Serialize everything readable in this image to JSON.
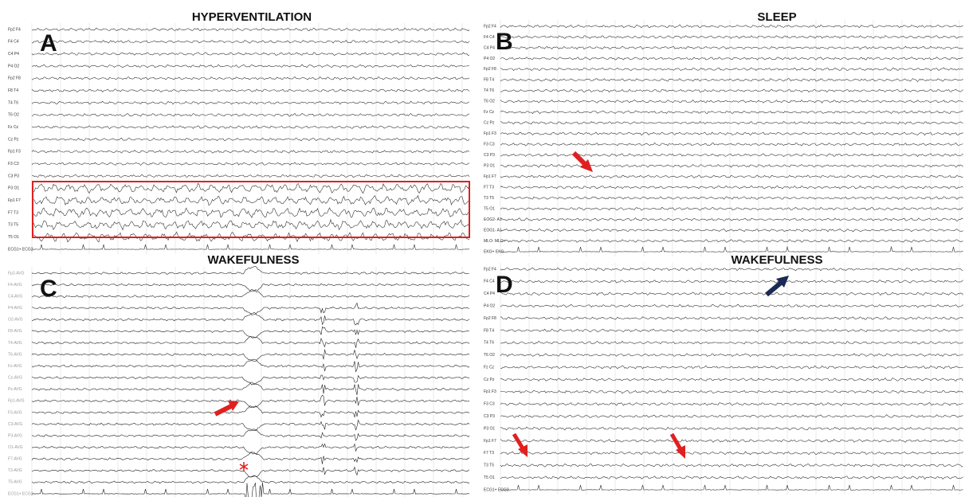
{
  "panels": [
    {
      "letter": "A",
      "title": "HYPERVENTILATION",
      "channels": [
        "Fp2 F4",
        "F4 C4",
        "C4 P4",
        "P4 O2",
        "Fp2 F8",
        "F8 T4",
        "T4 T6",
        "T6 O2",
        "Fz Cz",
        "Cz Pz",
        "Fp1 F3",
        "F3 C3",
        "C3 P3",
        "P3 O1",
        "Fp1 F7",
        "F7 T3",
        "T3 T5",
        "T5 O1",
        "ECG1+ ECG2-"
      ]
    },
    {
      "letter": "B",
      "title": "SLEEP",
      "channels": [
        "Fp2 F4",
        "F4 C4",
        "C4 P4",
        "P4 O2",
        "Fp2 F8",
        "F8 T4",
        "T4 T6",
        "T6 O2",
        "Fz Cz",
        "Cz Pz",
        "Fp1 F3",
        "F3 C3",
        "C3 P3",
        "P3 O1",
        "Fp1 F7",
        "F7 T3",
        "T3 T5",
        "T5 O1",
        "EOG2- A1",
        "EOG1- A1",
        "MLO- MLO+",
        "EKG+ EKG-"
      ]
    },
    {
      "letter": "C",
      "title": "WAKEFULNESS",
      "channels": [
        "Fp2-AVG",
        "F4-AVG",
        "C4-AVG",
        "P4-AVG",
        "O2-AVG",
        "F8-AVG",
        "T4-AVG",
        "T6-AVG",
        "Fz-AVG",
        "Cz-AVG",
        "Pz-AVG",
        "Fp1-AVG",
        "F3-AVG",
        "C3-AVG",
        "P3-AVG",
        "O1-AVG",
        "F7-AVG",
        "T3-AVG",
        "T5-AVG",
        "ECG1+ ECG2-"
      ]
    },
    {
      "letter": "D",
      "title": "WAKEFULNESS",
      "channels": [
        "Fp2 F4",
        "F4 C4",
        "C4 P4",
        "P4 O2",
        "Fp2 F8",
        "F8 T4",
        "T4 T6",
        "T6 O2",
        "Fz Cz",
        "Cz Pz",
        "Fp1 F3",
        "F3 C3",
        "C3 P3",
        "P3 O1",
        "Fp1 F7",
        "F7 T3",
        "T3 T5",
        "T5 O1",
        "ECG1+ ECG2-"
      ]
    }
  ]
}
